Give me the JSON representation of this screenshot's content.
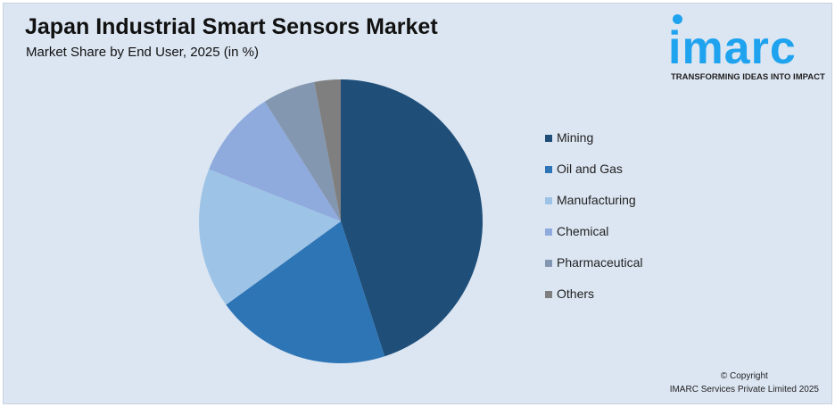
{
  "header": {
    "title": "Japan Industrial Smart Sensors Market",
    "subtitle": "Market Share by End User, 2025 (in %)"
  },
  "logo": {
    "word": "imarc",
    "tagline": "TRANSFORMING IDEAS INTO IMPACT",
    "color": "#1fa3ef"
  },
  "chart_data": {
    "type": "pie",
    "title": "Japan Industrial Smart Sensors Market",
    "subtitle": "Market Share by End User, 2025 (in %)",
    "categories": [
      "Mining",
      "Oil and Gas",
      "Manufacturing",
      "Chemical",
      "Pharmaceutical",
      "Others"
    ],
    "values": [
      45,
      20,
      16,
      10,
      6,
      3
    ],
    "colors": [
      "#1f4e79",
      "#2e75b6",
      "#9dc3e6",
      "#8faadc",
      "#8497b0",
      "#7f7f7f"
    ],
    "start": "top",
    "direction": "clockwise",
    "legend": "right"
  },
  "footer": {
    "line1": "© Copyright",
    "line2": "IMARC Services Private Limited 2025"
  }
}
